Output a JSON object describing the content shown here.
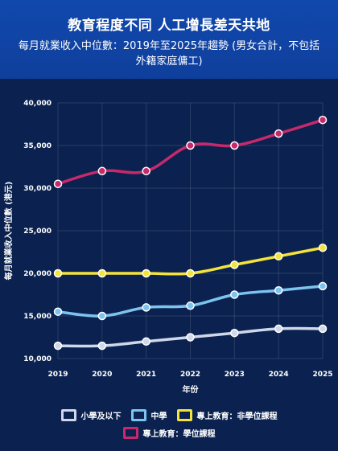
{
  "header": {
    "title": "教育程度不同 人工增長差天共地",
    "subtitle_line1": "每月就業收入中位數：2019年至2025年趨勢 (男女合計，不包括",
    "subtitle_line2": "外籍家庭傭工)"
  },
  "chart_data": {
    "type": "line",
    "x": [
      "2019",
      "2020",
      "2021",
      "2022",
      "2023",
      "2024",
      "2025"
    ],
    "xlabel": "年份",
    "ylabel": "每月就業收入中位數 (港元)",
    "ylim": [
      10000,
      40000
    ],
    "yticks": [
      10000,
      15000,
      20000,
      25000,
      30000,
      35000,
      40000
    ],
    "ytick_labels": [
      "10,000",
      "15,000",
      "20,000",
      "25,000",
      "30,000",
      "35,000",
      "40,000"
    ],
    "grid": true,
    "legend_position": "bottom",
    "series": [
      {
        "name": "小學及以下",
        "color": "#cfd8ea",
        "values": [
          11500,
          11500,
          12000,
          12500,
          13000,
          13500,
          13500
        ]
      },
      {
        "name": "中學",
        "color": "#7cc3ee",
        "values": [
          15500,
          15000,
          16000,
          16200,
          17500,
          18000,
          18500
        ]
      },
      {
        "name": "專上教育：非學位課程",
        "color": "#f4e33a",
        "values": [
          20000,
          20000,
          20000,
          20000,
          21000,
          22000,
          23000
        ]
      },
      {
        "name": "專上教育：學位課程",
        "color": "#c8296b",
        "values": [
          30500,
          32000,
          32000,
          35000,
          35000,
          36400,
          38000
        ]
      }
    ]
  }
}
